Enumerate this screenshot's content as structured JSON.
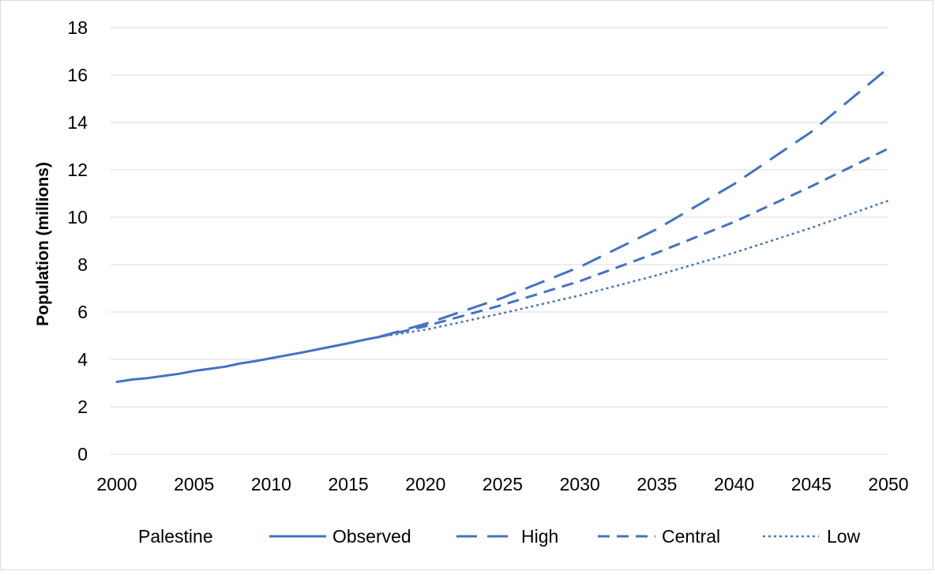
{
  "chart_data": {
    "type": "line",
    "title": "",
    "xlabel": "",
    "ylabel": "Population (millions)",
    "xlim": [
      2000,
      2050
    ],
    "ylim": [
      0,
      18
    ],
    "xticks": [
      2000,
      2005,
      2010,
      2015,
      2020,
      2025,
      2030,
      2035,
      2040,
      2045,
      2050
    ],
    "yticks": [
      0,
      2,
      4,
      6,
      8,
      10,
      12,
      14,
      16,
      18
    ],
    "grid": "horizontal",
    "legend": {
      "placement": "bottom",
      "title": "Palestine"
    },
    "colors": {
      "series": "#4472c4",
      "grid": "#d9d9d9",
      "frame": "#d9d9d9"
    },
    "series": [
      {
        "name": "Observed",
        "dash": "solid",
        "points": [
          [
            2000,
            3.05
          ],
          [
            2001,
            3.15
          ],
          [
            2002,
            3.21
          ],
          [
            2003,
            3.3
          ],
          [
            2004,
            3.39
          ],
          [
            2005,
            3.51
          ],
          [
            2006,
            3.6
          ],
          [
            2007,
            3.69
          ],
          [
            2008,
            3.83
          ],
          [
            2009,
            3.93
          ],
          [
            2010,
            4.05
          ],
          [
            2011,
            4.17
          ],
          [
            2012,
            4.29
          ],
          [
            2013,
            4.42
          ],
          [
            2014,
            4.55
          ],
          [
            2015,
            4.68
          ],
          [
            2016,
            4.82
          ],
          [
            2017,
            4.95
          ]
        ]
      },
      {
        "name": "High",
        "dash": "long-dash",
        "points": [
          [
            2017,
            4.95
          ],
          [
            2020,
            5.5
          ],
          [
            2025,
            6.6
          ],
          [
            2030,
            7.9
          ],
          [
            2035,
            9.5
          ],
          [
            2040,
            11.4
          ],
          [
            2045,
            13.6
          ],
          [
            2050,
            16.3
          ]
        ]
      },
      {
        "name": "Central",
        "dash": "dash",
        "points": [
          [
            2017,
            4.95
          ],
          [
            2020,
            5.4
          ],
          [
            2025,
            6.3
          ],
          [
            2030,
            7.3
          ],
          [
            2035,
            8.5
          ],
          [
            2040,
            9.8
          ],
          [
            2045,
            11.3
          ],
          [
            2050,
            12.9
          ]
        ]
      },
      {
        "name": "Low",
        "dash": "dot",
        "points": [
          [
            2017,
            4.95
          ],
          [
            2020,
            5.25
          ],
          [
            2025,
            5.95
          ],
          [
            2030,
            6.7
          ],
          [
            2035,
            7.55
          ],
          [
            2040,
            8.5
          ],
          [
            2045,
            9.55
          ],
          [
            2050,
            10.7
          ]
        ]
      }
    ]
  }
}
